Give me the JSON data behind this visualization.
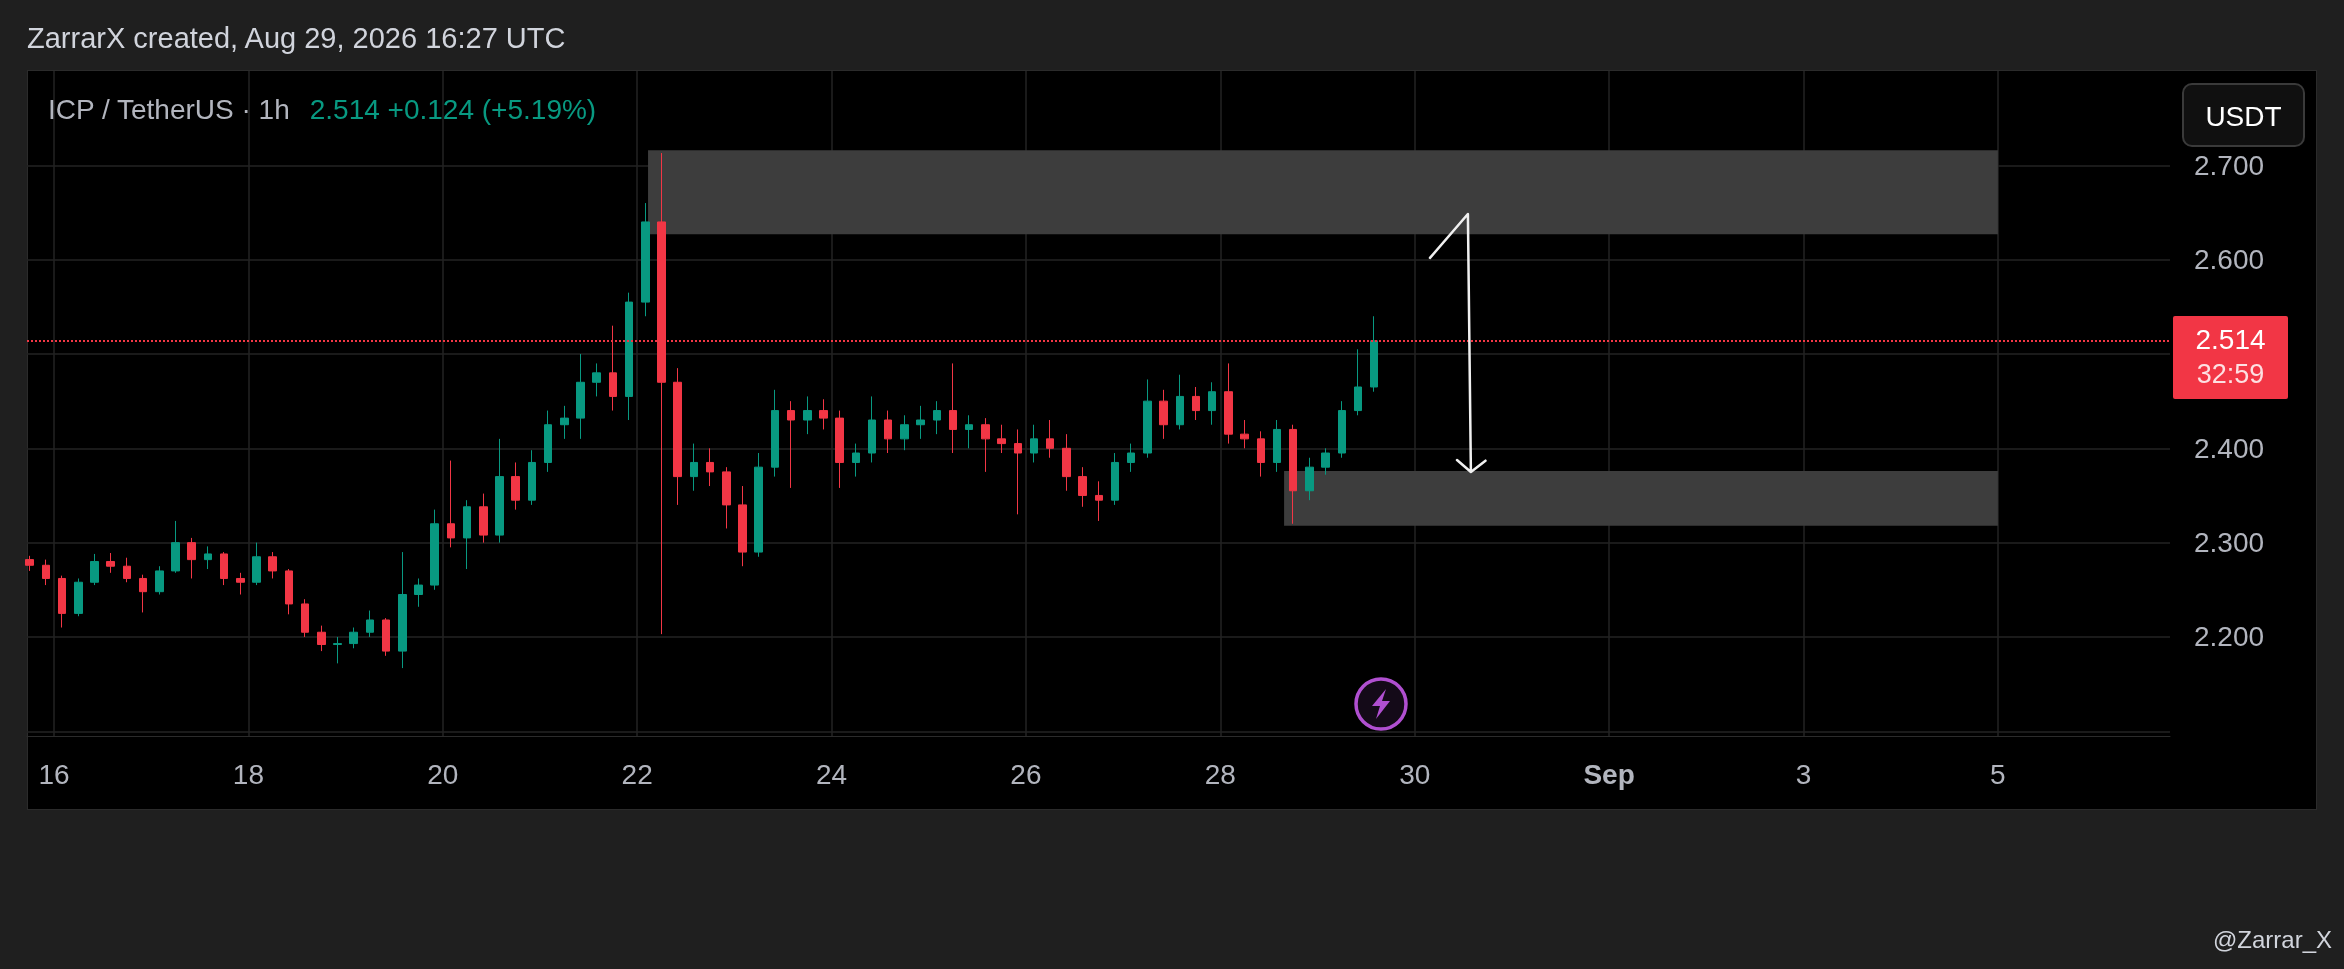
{
  "chart_data": {
    "type": "candlestick",
    "title": "ICP / TetherUS · 1h",
    "subtitle": "2.514 +0.124 (+5.19%)",
    "annotations": [
      "ZarrarX created, Aug 29, 2026 16:27 UTC",
      "32:59",
      "USDT",
      "@Zarrar_X"
    ],
    "x": [
      "2026-08-15T18:00",
      "2026-08-15T22:00",
      "2026-08-16T02:00",
      "2026-08-16T06:00",
      "2026-08-16T10:00",
      "2026-08-16T14:00",
      "2026-08-16T18:00",
      "2026-08-16T22:00",
      "2026-08-17T02:00",
      "2026-08-17T06:00",
      "2026-08-17T10:00",
      "2026-08-17T14:00",
      "2026-08-17T18:00",
      "2026-08-17T22:00",
      "2026-08-18T02:00",
      "2026-08-18T06:00",
      "2026-08-18T10:00",
      "2026-08-18T14:00",
      "2026-08-18T18:00",
      "2026-08-18T22:00",
      "2026-08-19T02:00",
      "2026-08-19T06:00",
      "2026-08-19T10:00",
      "2026-08-19T14:00",
      "2026-08-19T18:00",
      "2026-08-19T22:00",
      "2026-08-20T02:00",
      "2026-08-20T06:00",
      "2026-08-20T10:00",
      "2026-08-20T14:00",
      "2026-08-20T18:00",
      "2026-08-20T22:00",
      "2026-08-21T02:00",
      "2026-08-21T06:00",
      "2026-08-21T10:00",
      "2026-08-21T14:00",
      "2026-08-21T18:00",
      "2026-08-21T22:00",
      "2026-08-22T02:00",
      "2026-08-22T06:00",
      "2026-08-22T10:00",
      "2026-08-22T14:00",
      "2026-08-22T18:00",
      "2026-08-22T22:00",
      "2026-08-23T02:00",
      "2026-08-23T06:00",
      "2026-08-23T10:00",
      "2026-08-23T14:00",
      "2026-08-23T18:00",
      "2026-08-23T22:00",
      "2026-08-24T02:00",
      "2026-08-24T06:00",
      "2026-08-24T10:00",
      "2026-08-24T14:00",
      "2026-08-24T18:00",
      "2026-08-24T22:00",
      "2026-08-25T02:00",
      "2026-08-25T06:00",
      "2026-08-25T10:00",
      "2026-08-25T14:00",
      "2026-08-25T18:00",
      "2026-08-25T22:00",
      "2026-08-26T02:00",
      "2026-08-26T06:00",
      "2026-08-26T10:00",
      "2026-08-26T14:00",
      "2026-08-26T18:00",
      "2026-08-26T22:00",
      "2026-08-27T02:00",
      "2026-08-27T06:00",
      "2026-08-27T10:00",
      "2026-08-27T14:00",
      "2026-08-27T18:00",
      "2026-08-27T22:00",
      "2026-08-28T02:00",
      "2026-08-28T06:00",
      "2026-08-28T10:00",
      "2026-08-28T14:00",
      "2026-08-28T18:00",
      "2026-08-28T22:00",
      "2026-08-29T02:00",
      "2026-08-29T06:00",
      "2026-08-29T10:00",
      "2026-08-29T14:00"
    ],
    "ohlc": [
      [
        2.282,
        2.286,
        2.27,
        2.276
      ],
      [
        2.276,
        2.282,
        2.255,
        2.262
      ],
      [
        2.262,
        2.265,
        2.21,
        2.225
      ],
      [
        2.225,
        2.262,
        2.222,
        2.258
      ],
      [
        2.258,
        2.288,
        2.255,
        2.28
      ],
      [
        2.28,
        2.289,
        2.268,
        2.275
      ],
      [
        2.275,
        2.284,
        2.258,
        2.262
      ],
      [
        2.262,
        2.266,
        2.226,
        2.248
      ],
      [
        2.248,
        2.275,
        2.245,
        2.27
      ],
      [
        2.27,
        2.323,
        2.268,
        2.3
      ],
      [
        2.3,
        2.305,
        2.262,
        2.282
      ],
      [
        2.282,
        2.296,
        2.272,
        2.288
      ],
      [
        2.288,
        2.29,
        2.255,
        2.262
      ],
      [
        2.262,
        2.268,
        2.245,
        2.258
      ],
      [
        2.258,
        2.3,
        2.255,
        2.285
      ],
      [
        2.285,
        2.29,
        2.262,
        2.27
      ],
      [
        2.27,
        2.272,
        2.224,
        2.235
      ],
      [
        2.235,
        2.24,
        2.2,
        2.205
      ],
      [
        2.205,
        2.212,
        2.185,
        2.192
      ],
      [
        2.192,
        2.2,
        2.172,
        2.193
      ],
      [
        2.193,
        2.21,
        2.188,
        2.205
      ],
      [
        2.205,
        2.228,
        2.2,
        2.218
      ],
      [
        2.218,
        2.22,
        2.18,
        2.185
      ],
      [
        2.185,
        2.29,
        2.167,
        2.245
      ],
      [
        2.245,
        2.262,
        2.232,
        2.255
      ],
      [
        2.255,
        2.335,
        2.25,
        2.32
      ],
      [
        2.32,
        2.387,
        2.295,
        2.305
      ],
      [
        2.305,
        2.345,
        2.272,
        2.338
      ],
      [
        2.338,
        2.352,
        2.3,
        2.308
      ],
      [
        2.308,
        2.41,
        2.3,
        2.37
      ],
      [
        2.37,
        2.385,
        2.335,
        2.345
      ],
      [
        2.345,
        2.398,
        2.34,
        2.385
      ],
      [
        2.385,
        2.44,
        2.375,
        2.425
      ],
      [
        2.425,
        2.445,
        2.41,
        2.432
      ],
      [
        2.432,
        2.5,
        2.41,
        2.47
      ],
      [
        2.47,
        2.49,
        2.455,
        2.48
      ],
      [
        2.48,
        2.53,
        2.44,
        2.455
      ],
      [
        2.455,
        2.565,
        2.43,
        2.555
      ],
      [
        2.555,
        2.66,
        2.54,
        2.64
      ],
      [
        2.64,
        2.713,
        2.203,
        2.47
      ],
      [
        2.47,
        2.485,
        2.34,
        2.37
      ],
      [
        2.37,
        2.405,
        2.355,
        2.385
      ],
      [
        2.385,
        2.4,
        2.36,
        2.375
      ],
      [
        2.375,
        2.38,
        2.315,
        2.34
      ],
      [
        2.34,
        2.36,
        2.275,
        2.29
      ],
      [
        2.29,
        2.395,
        2.285,
        2.38
      ],
      [
        2.38,
        2.462,
        2.37,
        2.44
      ],
      [
        2.44,
        2.45,
        2.358,
        2.43
      ],
      [
        2.43,
        2.455,
        2.415,
        2.44
      ],
      [
        2.44,
        2.452,
        2.42,
        2.432
      ],
      [
        2.432,
        2.44,
        2.358,
        2.385
      ],
      [
        2.385,
        2.405,
        2.37,
        2.395
      ],
      [
        2.395,
        2.455,
        2.385,
        2.43
      ],
      [
        2.43,
        2.44,
        2.395,
        2.41
      ],
      [
        2.41,
        2.435,
        2.398,
        2.425
      ],
      [
        2.425,
        2.445,
        2.41,
        2.43
      ],
      [
        2.43,
        2.45,
        2.415,
        2.44
      ],
      [
        2.44,
        2.49,
        2.395,
        2.42
      ],
      [
        2.42,
        2.435,
        2.4,
        2.425
      ],
      [
        2.425,
        2.432,
        2.375,
        2.41
      ],
      [
        2.41,
        2.425,
        2.395,
        2.405
      ],
      [
        2.405,
        2.42,
        2.33,
        2.395
      ],
      [
        2.395,
        2.425,
        2.385,
        2.41
      ],
      [
        2.41,
        2.43,
        2.39,
        2.4
      ],
      [
        2.4,
        2.415,
        2.355,
        2.37
      ],
      [
        2.37,
        2.38,
        2.338,
        2.35
      ],
      [
        2.35,
        2.365,
        2.323,
        2.345
      ],
      [
        2.345,
        2.395,
        2.34,
        2.385
      ],
      [
        2.385,
        2.405,
        2.375,
        2.395
      ],
      [
        2.395,
        2.473,
        2.39,
        2.45
      ],
      [
        2.45,
        2.462,
        2.41,
        2.425
      ],
      [
        2.425,
        2.478,
        2.42,
        2.455
      ],
      [
        2.455,
        2.465,
        2.43,
        2.44
      ],
      [
        2.44,
        2.47,
        2.425,
        2.46
      ],
      [
        2.46,
        2.49,
        2.405,
        2.415
      ],
      [
        2.415,
        2.43,
        2.4,
        2.41
      ],
      [
        2.41,
        2.418,
        2.37,
        2.385
      ],
      [
        2.385,
        2.43,
        2.375,
        2.42
      ],
      [
        2.42,
        2.425,
        2.32,
        2.355
      ],
      [
        2.355,
        2.39,
        2.345,
        2.38
      ],
      [
        2.38,
        2.4,
        2.372,
        2.395
      ],
      [
        2.395,
        2.45,
        2.39,
        2.44
      ],
      [
        2.44,
        2.505,
        2.435,
        2.465
      ],
      [
        2.465,
        2.54,
        2.46,
        2.514
      ]
    ],
    "colors": [
      "#f23645",
      "#f23645",
      "#f23645",
      "#089981",
      "#089981",
      "#f23645",
      "#f23645",
      "#f23645",
      "#089981",
      "#089981",
      "#f23645",
      "#089981",
      "#f23645",
      "#f23645",
      "#089981",
      "#f23645",
      "#f23645",
      "#f23645",
      "#f23645",
      "#089981",
      "#089981",
      "#089981",
      "#f23645",
      "#089981",
      "#089981",
      "#089981",
      "#f23645",
      "#089981",
      "#f23645",
      "#089981",
      "#f23645",
      "#089981",
      "#089981",
      "#089981",
      "#089981",
      "#089981",
      "#f23645",
      "#089981",
      "#089981",
      "#f23645",
      "#f23645",
      "#089981",
      "#f23645",
      "#f23645",
      "#f23645",
      "#089981",
      "#089981",
      "#f23645",
      "#089981",
      "#f23645",
      "#f23645",
      "#089981",
      "#089981",
      "#f23645",
      "#089981",
      "#089981",
      "#089981",
      "#f23645",
      "#089981",
      "#f23645",
      "#f23645",
      "#f23645",
      "#089981",
      "#f23645",
      "#f23645",
      "#f23645",
      "#f23645",
      "#089981",
      "#089981",
      "#089981",
      "#f23645",
      "#089981",
      "#f23645",
      "#089981",
      "#f23645",
      "#f23645",
      "#f23645",
      "#089981",
      "#f23645",
      "#089981",
      "#089981",
      "#089981",
      "#089981",
      "#089981"
    ],
    "xlim": [
      "2026-08-15T17:20",
      "2026-09-06T18:30"
    ],
    "xticks": [
      {
        "value": "2026-08-16",
        "label": "16"
      },
      {
        "value": "2026-08-18",
        "label": "18"
      },
      {
        "value": "2026-08-20",
        "label": "20"
      },
      {
        "value": "2026-08-22",
        "label": "22"
      },
      {
        "value": "2026-08-24",
        "label": "24"
      },
      {
        "value": "2026-08-26",
        "label": "26"
      },
      {
        "value": "2026-08-28",
        "label": "28"
      },
      {
        "value": "2026-08-30",
        "label": "30"
      },
      {
        "value": "2026-09-01",
        "label": "Sep"
      },
      {
        "value": "2026-09-03",
        "label": "3"
      },
      {
        "value": "2026-09-05",
        "label": "5"
      }
    ],
    "ylim": [
      2.095,
      2.8
    ],
    "yticks": [
      {
        "value": 2.1,
        "label": null
      },
      {
        "value": 2.2,
        "label": "2.200"
      },
      {
        "value": 2.3,
        "label": "2.300"
      },
      {
        "value": 2.4,
        "label": "2.400"
      },
      {
        "value": 2.5,
        "label": null
      },
      {
        "value": 2.6,
        "label": "2.600"
      },
      {
        "value": 2.7,
        "label": "2.700"
      }
    ],
    "grid": true,
    "ref_lines": [
      {
        "axis": "y",
        "value": 2.514,
        "label": "2.514",
        "color": "#f23645",
        "line_style": "dotted"
      }
    ],
    "bands": [
      {
        "axis": "y",
        "from": 2.627,
        "to": 2.716,
        "color": "#3d3d3d"
      },
      {
        "axis": "y",
        "from": 2.318,
        "to": 2.376,
        "color": "#3d3d3d"
      }
    ]
  }
}
